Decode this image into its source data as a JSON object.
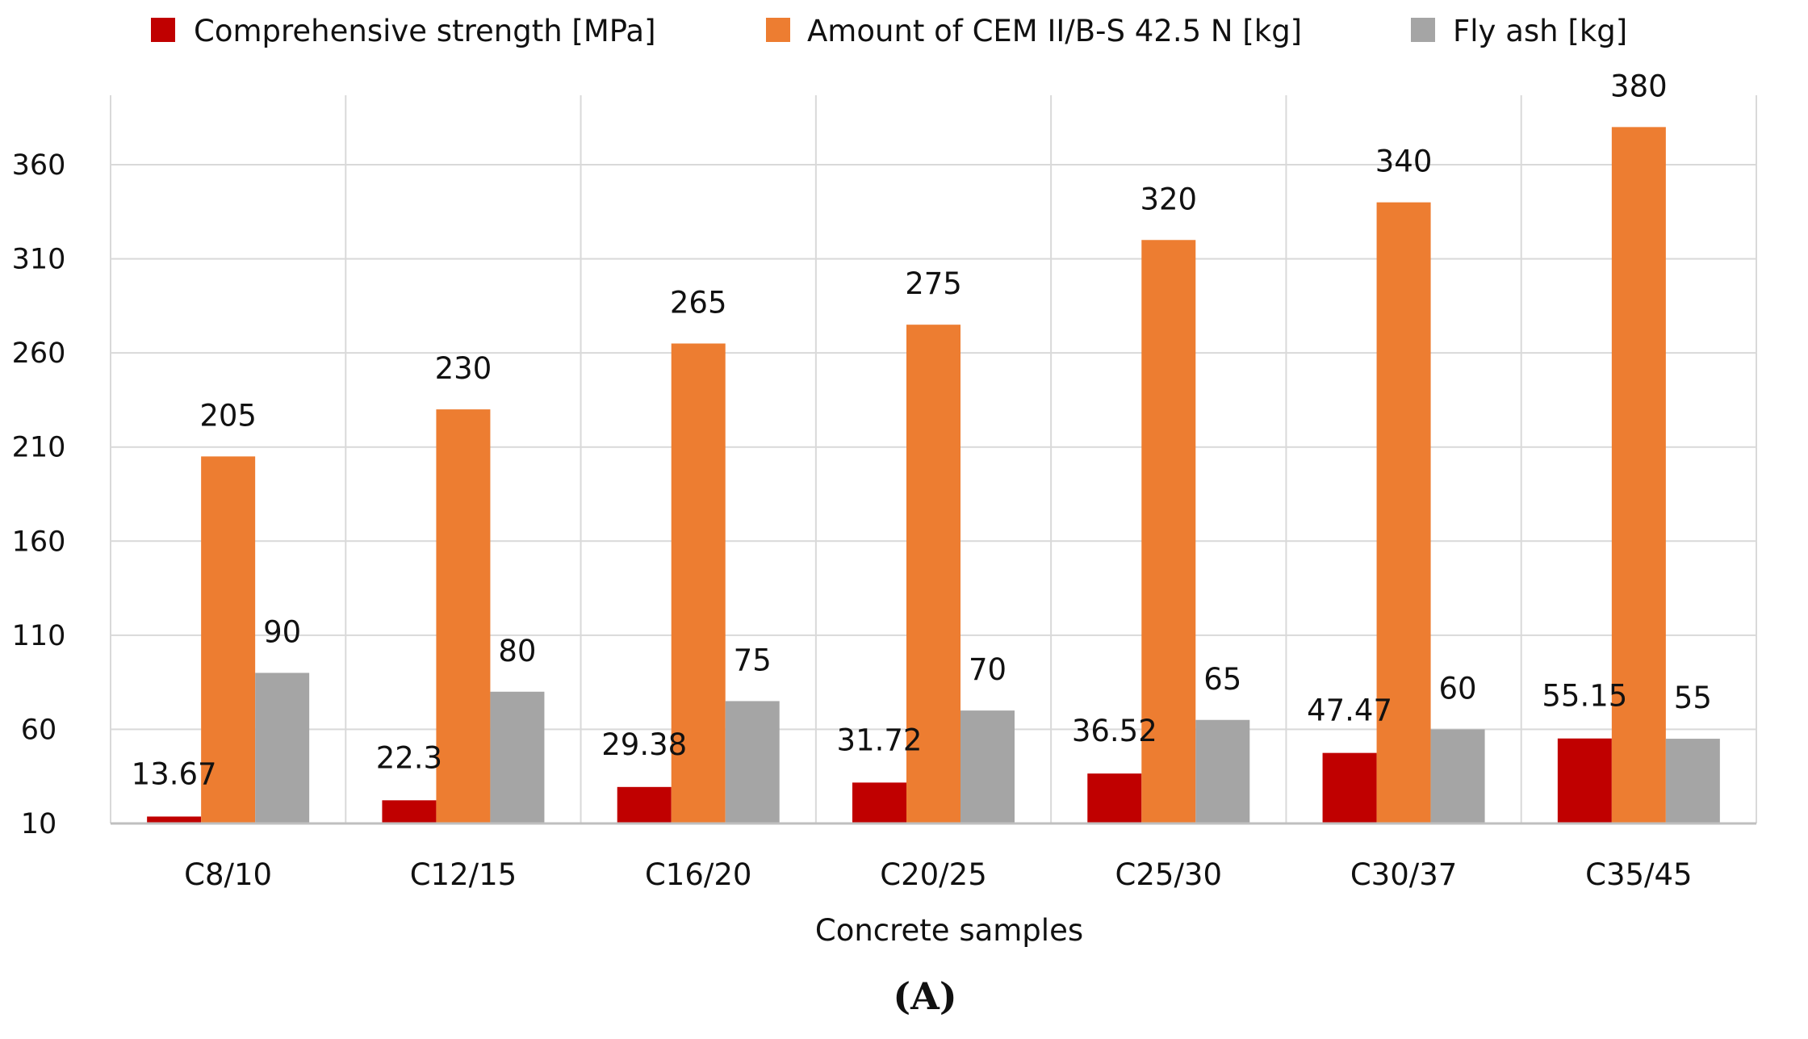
{
  "chart_data": {
    "type": "bar",
    "title": "",
    "xlabel": "Concrete samples",
    "ylabel": "",
    "panel_label": "(A)",
    "categories": [
      "C8/10",
      "C12/15",
      "C16/20",
      "C20/25",
      "C25/30",
      "C30/37",
      "C35/45"
    ],
    "series": [
      {
        "name": "Comprehensive strength [MPa]",
        "color": "#C00000",
        "values": [
          13.67,
          22.3,
          29.38,
          31.72,
          36.52,
          47.47,
          55.15
        ],
        "labels": [
          "13.67",
          "22.3",
          "29.38",
          "31.72",
          "36.52",
          "47.47",
          "55.15"
        ]
      },
      {
        "name": "Amount of CEM II/B-S 42.5 N [kg]",
        "color": "#ED7D31",
        "values": [
          205,
          230,
          265,
          275,
          320,
          340,
          380
        ],
        "labels": [
          "205",
          "230",
          "265",
          "275",
          "320",
          "340",
          "380"
        ]
      },
      {
        "name": "Fly ash [kg]",
        "color": "#A5A5A5",
        "values": [
          90,
          80,
          75,
          70,
          65,
          60,
          55
        ],
        "labels": [
          "90",
          "80",
          "75",
          "70",
          "65",
          "60",
          "55"
        ]
      }
    ],
    "ylim": [
      10,
      395
    ],
    "yticks": [
      10,
      60,
      110,
      160,
      210,
      260,
      310,
      360
    ],
    "grid": true,
    "legend_position": "top"
  }
}
